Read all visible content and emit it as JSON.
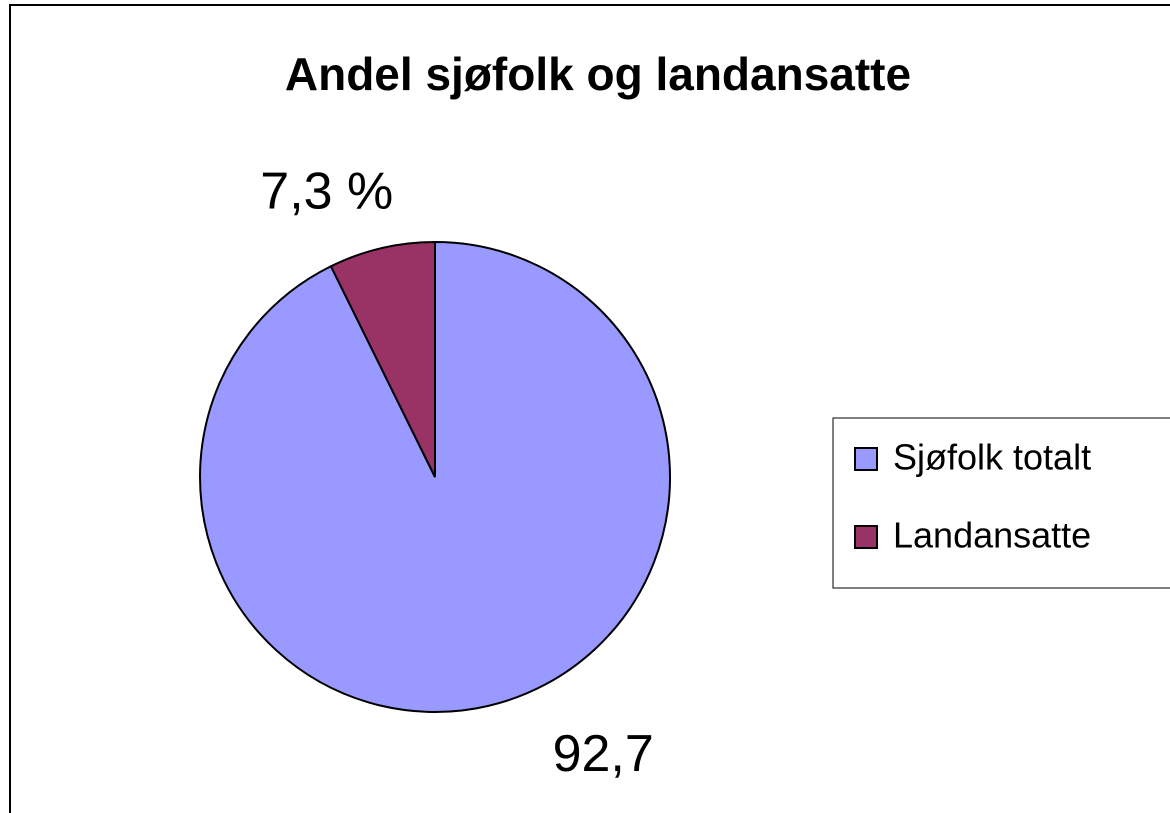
{
  "chart_data": {
    "type": "pie",
    "title": "Andel sjøfolk og landansatte",
    "categories": [
      "Sjøfolk totalt",
      "Landansatte"
    ],
    "values": [
      92.7,
      7.3
    ],
    "value_labels": [
      "92,7",
      "7,3 %"
    ],
    "colors": [
      "#9999ff",
      "#993366"
    ],
    "legend": "right"
  }
}
